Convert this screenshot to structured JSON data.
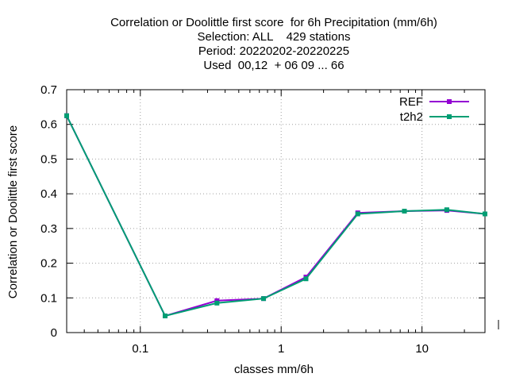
{
  "chart_data": {
    "type": "line",
    "title_lines": [
      "Correlation or Doolittle first score  for 6h Precipitation (mm/6h)",
      "Selection: ALL    429 stations",
      "Period: 20220202-20220225",
      "Used  00,12  + 06 09 ... 66"
    ],
    "xlabel": "classes mm/6h",
    "ylabel": "Correlation or Doolittle first score",
    "x_scale": "log",
    "xlim": [
      0.03,
      28
    ],
    "ylim": [
      0,
      0.7
    ],
    "x_ticks": [
      0.1,
      1,
      10
    ],
    "x_tick_labels": [
      "0.1",
      "1",
      "10"
    ],
    "y_ticks": [
      0,
      0.1,
      0.2,
      0.3,
      0.4,
      0.5,
      0.6,
      0.7
    ],
    "y_tick_labels": [
      "0",
      "0.1",
      "0.2",
      "0.3",
      "0.4",
      "0.5",
      "0.6",
      "0.7"
    ],
    "grid": true,
    "legend_position": "top-right",
    "x": [
      0.03,
      0.15,
      0.35,
      0.75,
      1.5,
      3.5,
      7.5,
      15,
      28
    ],
    "series": [
      {
        "name": "REF",
        "color": "#9400d3",
        "values": [
          0.625,
          0.048,
          0.092,
          0.098,
          0.16,
          0.345,
          0.35,
          0.352,
          0.342
        ]
      },
      {
        "name": "t2h2",
        "color": "#009e73",
        "values": [
          0.625,
          0.048,
          0.085,
          0.098,
          0.155,
          0.342,
          0.35,
          0.354,
          0.342
        ]
      }
    ]
  }
}
